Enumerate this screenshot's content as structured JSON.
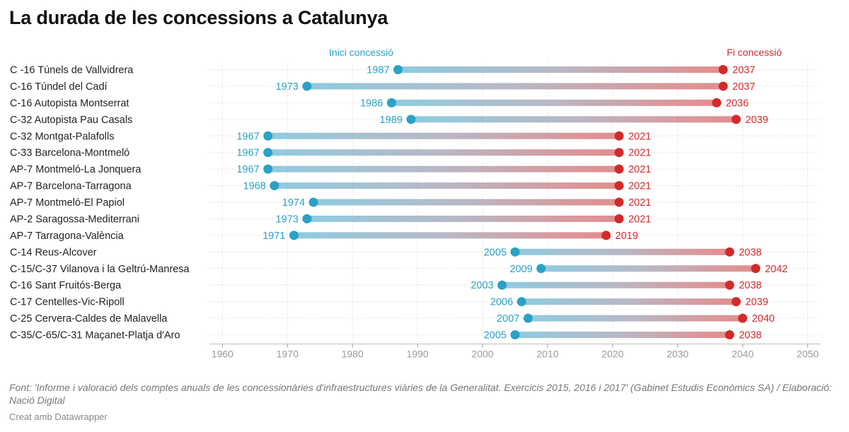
{
  "title": "La durada de les concessions a Catalunya",
  "footer": {
    "source": "Font: 'Informe i valoració dels comptes anuals de les concessionàries d'infraestructures viàries de la Generalitat. Exercicis 2015, 2016 i 2017' (Gabinet Estudis Econòmics SA) / Elaboració: Nació Digital",
    "credit": "Creat amb Datawrapper"
  },
  "colors": {
    "start": "#2aa1c7",
    "end": "#d12b2b",
    "grid": "#d9d9d9",
    "axis": "#9a9a9a"
  },
  "chart_data": {
    "type": "range-dot",
    "title": "La durada de les concessions a Catalunya",
    "start_label": "Inici concessió",
    "end_label": "Fi concessió",
    "xlim": [
      1958,
      2052
    ],
    "xticks": [
      1960,
      1970,
      1980,
      1990,
      2000,
      2010,
      2020,
      2030,
      2040,
      2050
    ],
    "rows": [
      {
        "name": "C -16 Túnels de Vallvidrera",
        "start": 1987,
        "end": 2037
      },
      {
        "name": "C-16 Túndel del Cadí",
        "start": 1973,
        "end": 2037
      },
      {
        "name": "C-16 Autopista Montserrat",
        "start": 1986,
        "end": 2036
      },
      {
        "name": "C-32 Autopista Pau Casals",
        "start": 1989,
        "end": 2039
      },
      {
        "name": "C-32 Montgat-Palafolls",
        "start": 1967,
        "end": 2021
      },
      {
        "name": "C-33 Barcelona-Montmeló",
        "start": 1967,
        "end": 2021
      },
      {
        "name": "AP-7 Montmeló-La Jonquera",
        "start": 1967,
        "end": 2021
      },
      {
        "name": "AP-7 Barcelona-Tarragona",
        "start": 1968,
        "end": 2021
      },
      {
        "name": "AP-7 Montmeló-El Papiol",
        "start": 1974,
        "end": 2021
      },
      {
        "name": "AP-2 Saragossa-Mediterrani",
        "start": 1973,
        "end": 2021
      },
      {
        "name": "AP-7 Tarragona-València",
        "start": 1971,
        "end": 2019
      },
      {
        "name": "C-14 Reus-Alcover",
        "start": 2005,
        "end": 2038
      },
      {
        "name": "C-15/C-37 Vilanova i la Geltrú-Manresa",
        "start": 2009,
        "end": 2042
      },
      {
        "name": "C-16 Sant Fruitós-Berga",
        "start": 2003,
        "end": 2038
      },
      {
        "name": "C-17 Centelles-Vic-Ripoll",
        "start": 2006,
        "end": 2039
      },
      {
        "name": "C-25 Cervera-Caldes de Malavella",
        "start": 2007,
        "end": 2040
      },
      {
        "name": "C-35/C-65/C-31 Maçanet-Platja d'Aro",
        "start": 2005,
        "end": 2038
      }
    ]
  }
}
